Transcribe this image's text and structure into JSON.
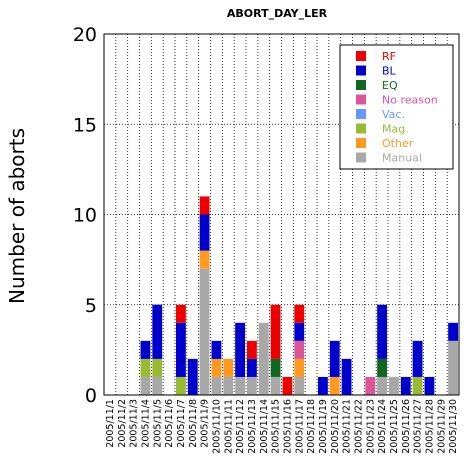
{
  "chart_data": {
    "type": "bar",
    "stacked": true,
    "title": "ABORT_DAY_LER",
    "xlabel": "",
    "ylabel": "Number of aborts",
    "ylim": [
      0,
      20
    ],
    "yticks": [
      0,
      5,
      10,
      15,
      20
    ],
    "grid": true,
    "legend_position": "top-right",
    "categories": [
      "2005/11/1",
      "2005/11/2",
      "2005/11/3",
      "2005/11/4",
      "2005/11/5",
      "2005/11/6",
      "2005/11/7",
      "2005/11/8",
      "2005/11/9",
      "2005/11/10",
      "2005/11/11",
      "2005/11/12",
      "2005/11/13",
      "2005/11/14",
      "2005/11/15",
      "2005/11/16",
      "2005/11/17",
      "2005/11/18",
      "2005/11/19",
      "2005/11/20",
      "2005/11/21",
      "2005/11/22",
      "2005/11/23",
      "2005/11/24",
      "2005/11/25",
      "2005/11/26",
      "2005/11/27",
      "2005/11/28",
      "2005/11/29",
      "2005/11/30"
    ],
    "series": [
      {
        "name": "Manual",
        "color": "#a8a8a8",
        "values": [
          0,
          0,
          0,
          1,
          1,
          0,
          0,
          0,
          7,
          1,
          1,
          1,
          1,
          4,
          1,
          0,
          1,
          0,
          0,
          0,
          0,
          0,
          0,
          1,
          1,
          0,
          0,
          0,
          0,
          3
        ]
      },
      {
        "name": "Other",
        "color": "#ff9922",
        "values": [
          0,
          0,
          0,
          0,
          0,
          0,
          0,
          0,
          1,
          1,
          1,
          0,
          0,
          0,
          0,
          0,
          1,
          0,
          0,
          1,
          0,
          0,
          0,
          0,
          0,
          0,
          0,
          0,
          0,
          0
        ]
      },
      {
        "name": "Mag.",
        "color": "#99bb33",
        "values": [
          0,
          0,
          0,
          1,
          1,
          0,
          1,
          0,
          0,
          0,
          0,
          0,
          0,
          0,
          0,
          0,
          0,
          0,
          0,
          0,
          0,
          0,
          0,
          0,
          0,
          0,
          1,
          0,
          0,
          0
        ]
      },
      {
        "name": "Vac.",
        "color": "#6699ff",
        "values": [
          0,
          0,
          0,
          0,
          0,
          0,
          0,
          0,
          0,
          0,
          0,
          0,
          0,
          0,
          0,
          0,
          0,
          0,
          0,
          0,
          0,
          0,
          0,
          0,
          0,
          0,
          0,
          0,
          0,
          0
        ]
      },
      {
        "name": "No reason",
        "color": "#dd5599",
        "values": [
          0,
          0,
          0,
          0,
          0,
          0,
          0,
          0,
          0,
          0,
          0,
          0,
          0,
          0,
          0,
          0,
          1,
          0,
          0,
          0,
          0,
          0,
          1,
          0,
          0,
          0,
          0,
          0,
          0,
          0
        ]
      },
      {
        "name": "EQ",
        "color": "#116622",
        "values": [
          0,
          0,
          0,
          0,
          0,
          0,
          0,
          0,
          0,
          0,
          0,
          0,
          0,
          0,
          1,
          0,
          0,
          0,
          0,
          0,
          0,
          0,
          0,
          1,
          0,
          0,
          0,
          0,
          0,
          0
        ]
      },
      {
        "name": "BL",
        "color": "#0000cc",
        "values": [
          0,
          0,
          0,
          1,
          3,
          0,
          3,
          2,
          2,
          1,
          0,
          3,
          1,
          0,
          0,
          0,
          1,
          0,
          1,
          2,
          2,
          0,
          0,
          3,
          0,
          1,
          2,
          1,
          0,
          1
        ]
      },
      {
        "name": "RF",
        "color": "#ee0000",
        "values": [
          0,
          0,
          0,
          0,
          0,
          0,
          1,
          0,
          1,
          0,
          0,
          0,
          1,
          0,
          3,
          1,
          1,
          0,
          0,
          0,
          0,
          0,
          0,
          0,
          0,
          0,
          0,
          0,
          0,
          0
        ]
      }
    ],
    "legend_order": [
      "RF",
      "BL",
      "EQ",
      "No reason",
      "Vac.",
      "Mag.",
      "Other",
      "Manual"
    ]
  }
}
